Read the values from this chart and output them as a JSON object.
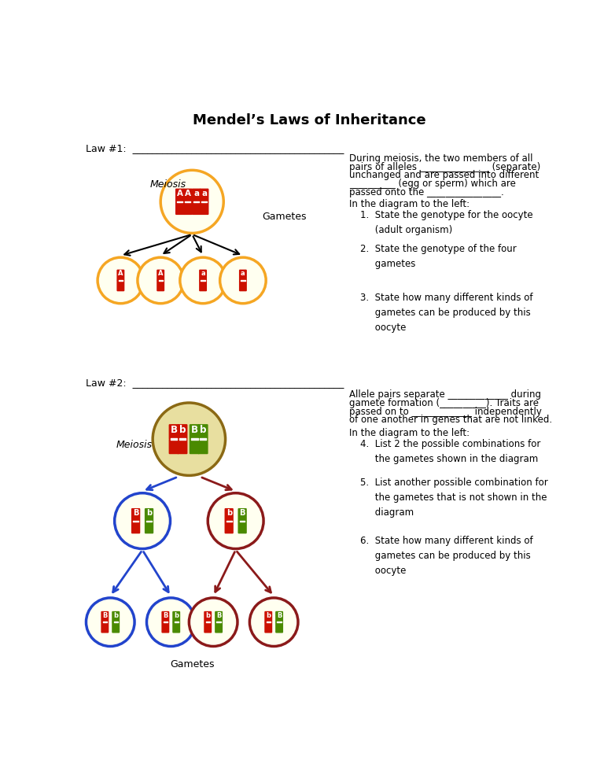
{
  "title": "Mendel’s Laws of Inheritance",
  "bg_color": "#ffffff",
  "cell_fill": "#fffff0",
  "cell_border": "#f5a623",
  "chr_red": "#cc1100",
  "chr_green": "#4a8a00",
  "law1_label": "Law #1:  ___________________________________________",
  "law2_label": "Law #2:  ___________________________________________",
  "meiosis_label": "Meiosis",
  "gametes_label": "Gametes",
  "text_right1_line1": "During meiosis, the two members of all",
  "text_right1_line2": "pairs of alleles _______________ (separate)",
  "text_right1_line3": "unchanged and are passed into different",
  "text_right1_line4": "__________ (egg or sperm) which are",
  "text_right1_line5": "passed onto the ________________.",
  "text_right1b": "In the diagram to the left:",
  "q1": "1.  State the genotype for the oocyte\n     (adult organism)",
  "q2": "2.  State the genotype of the four\n     gametes",
  "q3": "3.  State how many different kinds of\n     gametes can be produced by this\n     oocyte",
  "text_right2_line1": "Allele pairs separate _____________ during",
  "text_right2_line2": "gamete formation (__________). Traits are",
  "text_right2_line3": "passed on to _____________ independently",
  "text_right2_line4": "of one another in genes that are not linked.",
  "text_right2b": "In the diagram to the left:",
  "q4": "4.  List 2 the possible combinations for\n     the gametes shown in the diagram",
  "q5": "5.  List another possible combination for\n     the gametes that is not shown in the\n     diagram",
  "q6": "6.  State how many different kinds of\n     gametes can be produced by this\n     oocyte",
  "cell_fill_dark": "#e8dfa0",
  "cell_border_dark": "#8B6914",
  "arrow_blue": "#2244cc",
  "arrow_darkred": "#8B1A1A"
}
